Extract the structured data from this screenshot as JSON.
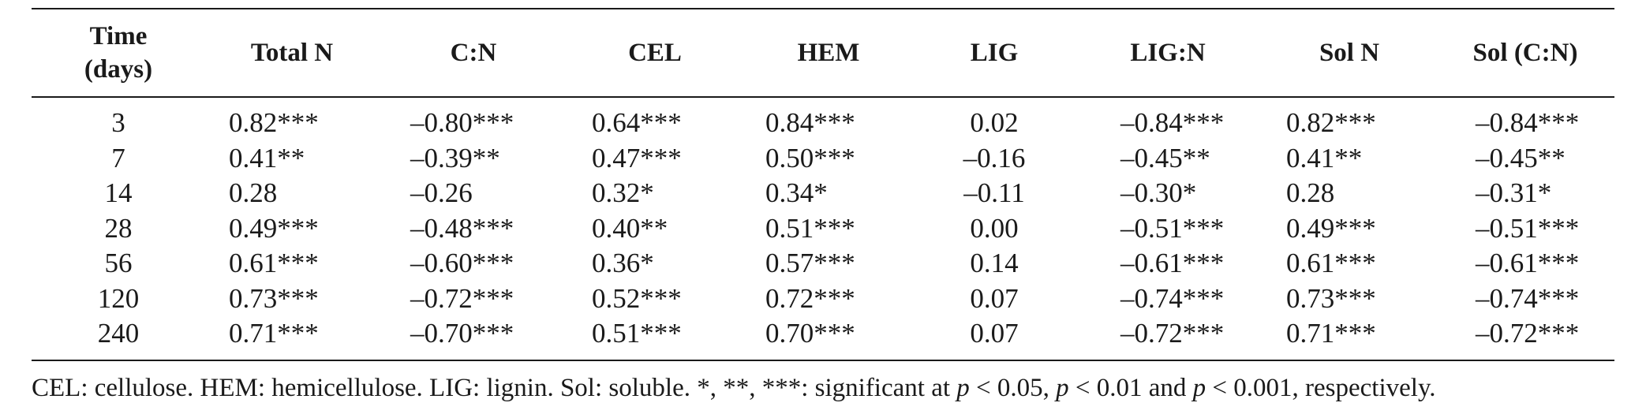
{
  "table": {
    "headers": [
      {
        "line1": "Time",
        "line2": "(days)"
      },
      {
        "line1": "Total N"
      },
      {
        "line1": "C:N"
      },
      {
        "line1": "CEL"
      },
      {
        "line1": "HEM"
      },
      {
        "line1": "LIG"
      },
      {
        "line1": "LIG:N"
      },
      {
        "line1": "Sol N"
      },
      {
        "line1": "Sol (C:N)"
      }
    ],
    "rows": [
      [
        "3",
        "0.82***",
        "–0.80***",
        "0.64***",
        "0.84***",
        "0.02",
        "–0.84***",
        "0.82***",
        "–0.84***"
      ],
      [
        "7",
        "0.41**",
        "–0.39**",
        "0.47***",
        "0.50***",
        "–0.16",
        "–0.45**",
        "0.41**",
        "–0.45**"
      ],
      [
        "14",
        "0.28",
        "–0.26",
        "0.32*",
        "0.34*",
        "–0.11",
        "–0.30*",
        "0.28",
        "–0.31*"
      ],
      [
        "28",
        "0.49***",
        "–0.48***",
        "0.40**",
        "0.51***",
        "0.00",
        "–0.51***",
        "0.49***",
        "–0.51***"
      ],
      [
        "56",
        "0.61***",
        "–0.60***",
        "0.36*",
        "0.57***",
        "0.14",
        "–0.61***",
        "0.61***",
        "–0.61***"
      ],
      [
        "120",
        "0.73***",
        "–0.72***",
        "0.52***",
        "0.72***",
        "0.07",
        "–0.74***",
        "0.73***",
        "–0.74***"
      ],
      [
        "240",
        "0.71***",
        "–0.70***",
        "0.51***",
        "0.70***",
        "0.07",
        "–0.72***",
        "0.71***",
        "–0.72***"
      ]
    ]
  },
  "footnote": {
    "text_before": "CEL: cellulose. HEM: hemicellulose. LIG: lignin. Sol: soluble. *, **, ***: significant at ",
    "p1_var": "p",
    "p1_rest": " < 0.05, ",
    "p2_var": "p",
    "p2_rest": " < 0.01 and ",
    "p3_var": "p",
    "p3_rest": " < 0.001, respectively."
  }
}
